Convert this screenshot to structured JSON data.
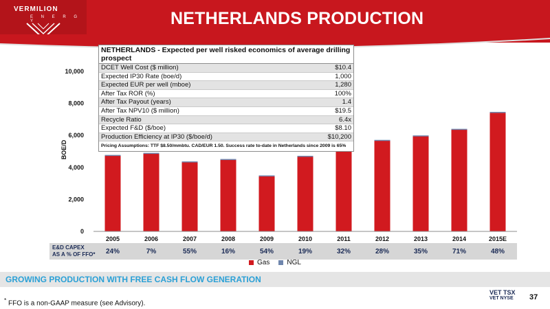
{
  "header": {
    "title": "NETHERLANDS PRODUCTION",
    "logo_name": "VERMILION",
    "logo_sub": "E N E R G Y"
  },
  "colors": {
    "brand_red": "#c8171e",
    "gas": "#d11a1f",
    "ngl": "#6f86ad",
    "tagline": "#2aa0d6",
    "capex_text": "#1a2a55"
  },
  "econ_table": {
    "title": "NETHERLANDS - Expected per well risked economics of average drilling prospect",
    "rows": [
      {
        "label": "DCET Well Cost ($ million)",
        "value": "$10.4"
      },
      {
        "label": "Expected IP30 Rate (boe/d)",
        "value": "1,000"
      },
      {
        "label": "Expected EUR per well (mboe)",
        "value": "1,280"
      },
      {
        "label": "After Tax ROR (%)",
        "value": "100%"
      },
      {
        "label": "After Tax Payout (years)",
        "value": "1.4"
      },
      {
        "label": "After Tax NPV10 ($ million)",
        "value": "$19.5"
      },
      {
        "label": "Recycle Ratio",
        "value": "6.4x"
      },
      {
        "label": "Expected F&D ($/boe)",
        "value": "$8.10"
      },
      {
        "label": "Production Efficiency at IP30 ($/boe/d)",
        "value": "$10,200"
      }
    ],
    "footnote": "Pricing Assumptions:  TTF $8.50/mmbtu.  CAD/EUR 1.50. Success rate to-date in Netherlands since 2009 is 65%"
  },
  "chart_data": {
    "type": "bar",
    "stacked": true,
    "categories": [
      "2005",
      "2006",
      "2007",
      "2008",
      "2009",
      "2010",
      "2011",
      "2012",
      "2013",
      "2014",
      "2015E"
    ],
    "series": [
      {
        "name": "Gas",
        "values": [
          4750,
          4880,
          4350,
          4500,
          3480,
          4700,
          5450,
          5680,
          5960,
          6370,
          7410
        ]
      },
      {
        "name": "NGL",
        "values": [
          30,
          30,
          25,
          25,
          20,
          25,
          30,
          40,
          40,
          40,
          60
        ]
      }
    ],
    "ylabel": "BOE/D",
    "ylim": [
      0,
      10000
    ],
    "yticks": [
      0,
      2000,
      4000,
      6000,
      8000,
      10000
    ],
    "ytick_labels": [
      "0",
      "2,000",
      "4,000",
      "6,000",
      "8,000",
      "10,000"
    ],
    "legend_position": "bottom"
  },
  "capex": {
    "label_line1": "E&D CAPEX",
    "label_line2": "AS A % OF FFO*",
    "values": [
      "24%",
      "7%",
      "55%",
      "16%",
      "54%",
      "19%",
      "32%",
      "28%",
      "35%",
      "71%",
      "48%"
    ]
  },
  "tagline": "GROWING PRODUCTION WITH FREE CASH FLOW GENERATION",
  "footnote": "FFO is a non-GAAP measure (see Advisory).",
  "footnote_marker": "*",
  "exchange": {
    "line1": "VET TSX",
    "line2": "VET NYSE"
  },
  "page_number": "37"
}
